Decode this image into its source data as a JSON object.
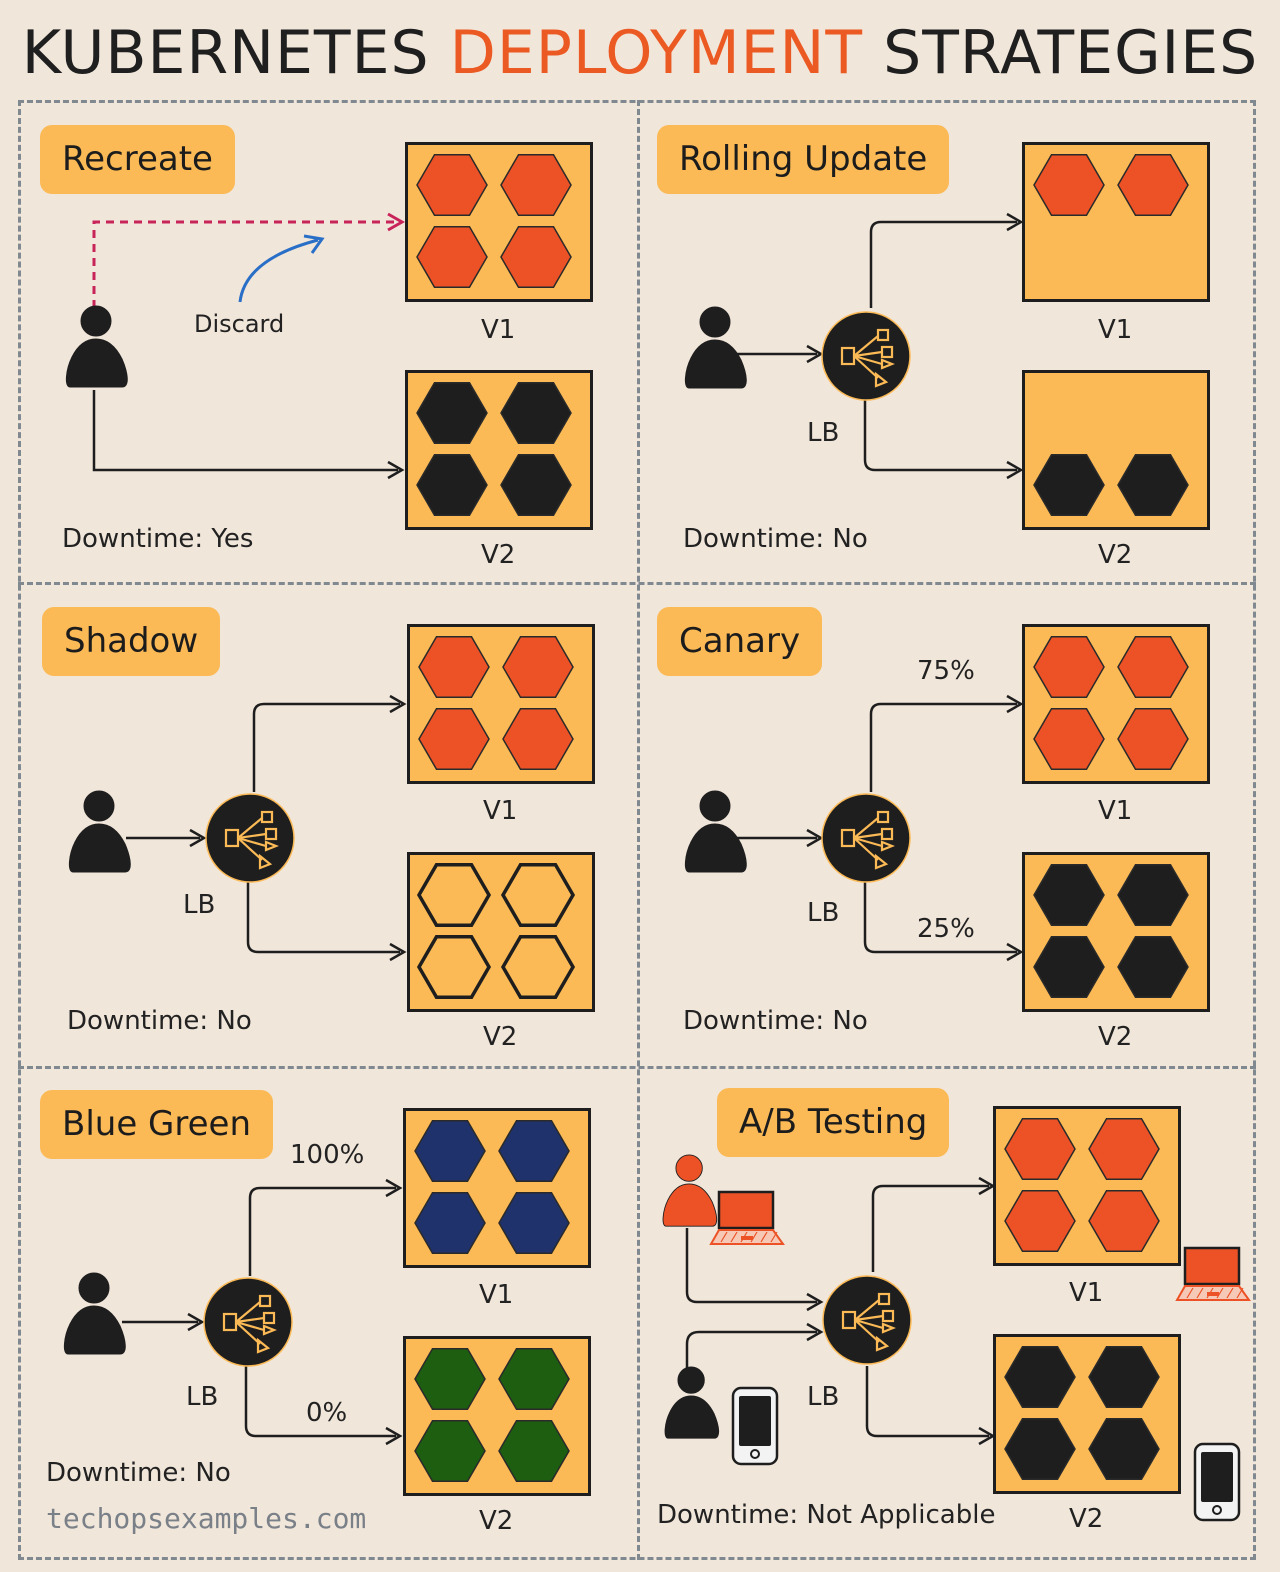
{
  "title": {
    "part1": "KUBERNETES",
    "accent": "DEPLOYMENT",
    "part2": "STRATEGIES"
  },
  "colors": {
    "accent": "#ec5a23",
    "box": "#fbba56",
    "v1_pod": "#ec5226",
    "v2_pod": "#1e1e1e",
    "blue_pod": "#1f326b",
    "green_pod": "#1d5e10",
    "background": "#f1e6da",
    "dashed_border": "#808890"
  },
  "common": {
    "v1": "V1",
    "v2": "V2",
    "lb": "LB"
  },
  "panels": {
    "recreate": {
      "title": "Recreate",
      "discard": "Discard",
      "downtime": "Downtime: Yes"
    },
    "rolling": {
      "title": "Rolling Update",
      "downtime": "Downtime: No"
    },
    "shadow": {
      "title": "Shadow",
      "downtime": "Downtime: No"
    },
    "canary": {
      "title": "Canary",
      "v1_pct": "75%",
      "v2_pct": "25%",
      "downtime": "Downtime: No"
    },
    "bluegreen": {
      "title": "Blue Green",
      "v1_pct": "100%",
      "v2_pct": "0%",
      "downtime": "Downtime: No"
    },
    "abtesting": {
      "title": "A/B Testing",
      "downtime": "Downtime: Not Applicable"
    }
  },
  "footer": {
    "credit": "techopsexamples.com"
  },
  "icons": [
    "user-icon",
    "load-balancer-icon",
    "laptop-icon",
    "phone-icon",
    "hexagon-pod-icon"
  ]
}
